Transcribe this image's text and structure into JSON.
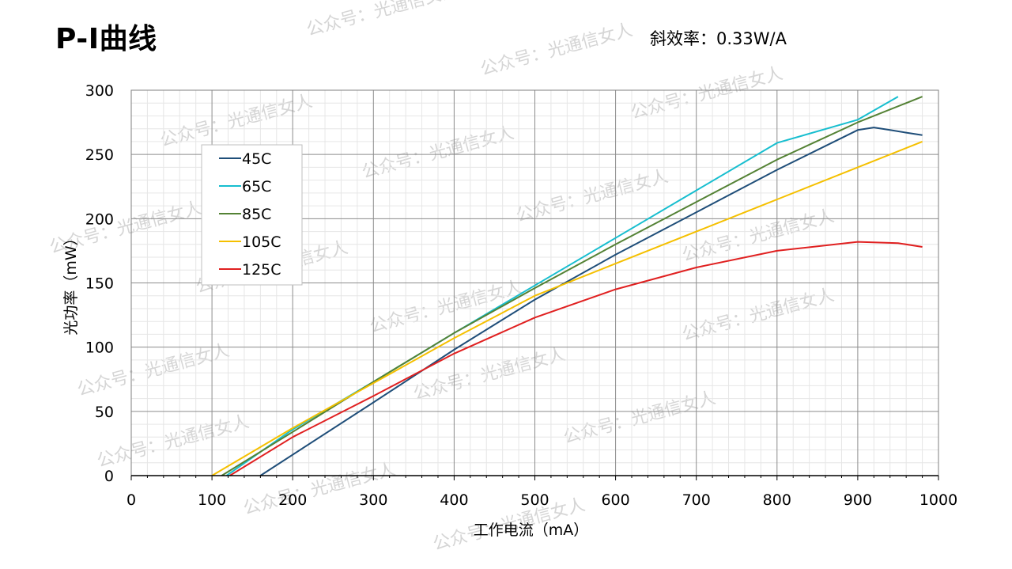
{
  "header": {
    "title": "P-I曲线",
    "slope_text": "斜效率：0.33W/A"
  },
  "watermark": "公众号：光通信女人",
  "colors": {
    "45C": "#1f4e79",
    "65C": "#17becf",
    "85C": "#548235",
    "105C": "#f5c000",
    "125C": "#e02020",
    "grid_major": "#8c8c8c",
    "grid_minor": "#e6e6e6"
  },
  "chart_data": {
    "type": "line",
    "xlabel": "工作电流（mA）",
    "ylabel": "光功率（mW）",
    "xlim": [
      0,
      1000
    ],
    "ylim": [
      0,
      300
    ],
    "xticks": [
      0,
      100,
      200,
      300,
      400,
      500,
      600,
      700,
      800,
      900,
      1000
    ],
    "yticks": [
      0,
      50,
      100,
      150,
      200,
      250,
      300
    ],
    "grid": true,
    "legend_position": "top-left",
    "series": [
      {
        "name": "45C",
        "x": [
          160,
          300,
          400,
          500,
          600,
          700,
          800,
          900,
          920,
          940,
          960,
          980
        ],
        "y": [
          0,
          57,
          98,
          137,
          172,
          205,
          238,
          269,
          271,
          269,
          267,
          265
        ]
      },
      {
        "name": "65C",
        "x": [
          118,
          200,
          300,
          400,
          500,
          600,
          700,
          800,
          900,
          950
        ],
        "y": [
          0,
          36,
          73,
          111,
          148,
          185,
          222,
          259,
          277,
          295
        ]
      },
      {
        "name": "85C",
        "x": [
          112,
          200,
          300,
          400,
          500,
          600,
          700,
          800,
          900,
          980
        ],
        "y": [
          0,
          34,
          73,
          111,
          146,
          180,
          213,
          246,
          275,
          295
        ]
      },
      {
        "name": "105C",
        "x": [
          100,
          200,
          300,
          400,
          500,
          600,
          700,
          800,
          900,
          980
        ],
        "y": [
          0,
          37,
          72,
          107,
          140,
          165,
          190,
          215,
          240,
          260
        ]
      },
      {
        "name": "125C",
        "x": [
          122,
          200,
          300,
          400,
          500,
          600,
          700,
          800,
          900,
          950,
          980
        ],
        "y": [
          0,
          30,
          62,
          95,
          123,
          145,
          162,
          175,
          182,
          181,
          178
        ]
      }
    ]
  }
}
